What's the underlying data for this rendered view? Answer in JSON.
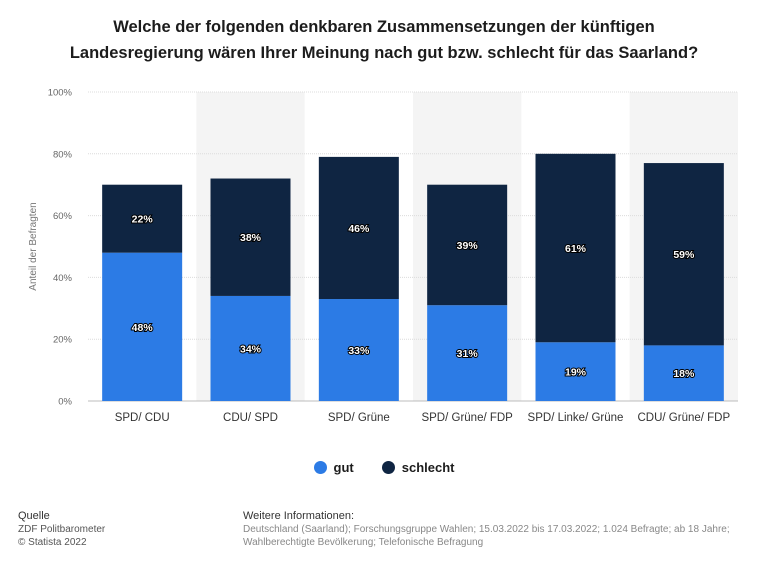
{
  "title_lines": [
    "Welche der folgenden denkbaren Zusammensetzungen der künftigen",
    "Landesregierung wären Ihrer Meinung nach gut bzw. schlecht für das Saarland?"
  ],
  "chart_data": {
    "type": "bar",
    "stacked": true,
    "categories": [
      "SPD/ CDU",
      "CDU/ SPD",
      "SPD/ Grüne",
      "SPD/ Grüne/ FDP",
      "SPD/ Linke/ Grüne",
      "CDU/ Grüne/ FDP"
    ],
    "series": [
      {
        "name": "gut",
        "values": [
          48,
          34,
          33,
          31,
          19,
          18
        ],
        "color": "#2c7be5"
      },
      {
        "name": "schlecht",
        "values": [
          22,
          38,
          46,
          39,
          61,
          59
        ],
        "color": "#0f2542"
      }
    ],
    "ylabel": "Anteil der Befragten",
    "ylim": [
      0,
      100
    ],
    "yticks": [
      "0%",
      "20%",
      "40%",
      "60%",
      "80%",
      "100%"
    ],
    "tick_values": [
      0,
      20,
      40,
      60,
      80,
      100
    ],
    "value_suffix": "%",
    "legend_position": "bottom-center"
  },
  "legend": [
    {
      "label": "gut",
      "color": "#2c7be5"
    },
    {
      "label": "schlecht",
      "color": "#0f2542"
    }
  ],
  "footer": {
    "source_heading": "Quelle",
    "source_lines": [
      "ZDF Politbarometer",
      "© Statista 2022"
    ],
    "info_heading": "Weitere Informationen:",
    "info_text": "Deutschland (Saarland); Forschungsgruppe Wahlen; 15.03.2022 bis 17.03.2022; 1.024 Befragte; ab 18 Jahre; Wahlberechtigte Bevölkerung; Telefonische Befragung"
  }
}
